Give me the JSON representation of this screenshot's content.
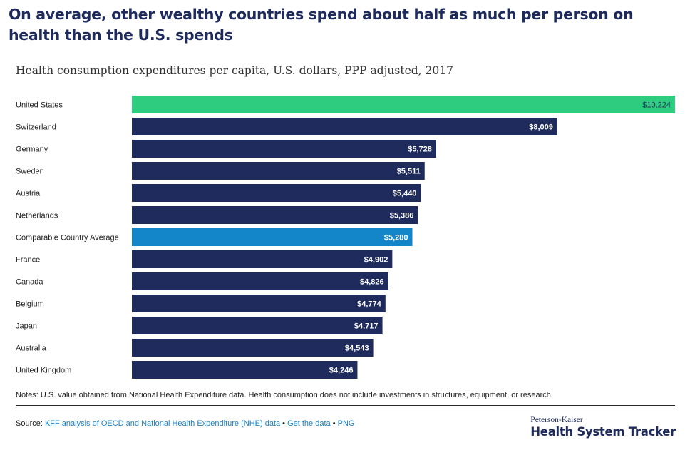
{
  "title": "On average, other wealthy countries spend about half as much per person on health than the U.S. spends",
  "subtitle": "Health consumption expenditures per capita, U.S. dollars, PPP adjusted, 2017",
  "chart_data": {
    "type": "bar",
    "orientation": "horizontal",
    "title": "On average, other wealthy countries spend about half as much per person on health than the U.S. spends",
    "subtitle": "Health consumption expenditures per capita, U.S. dollars, PPP adjusted, 2017",
    "categories": [
      "United States",
      "Switzerland",
      "Germany",
      "Sweden",
      "Austria",
      "Netherlands",
      "Comparable Country Average",
      "France",
      "Canada",
      "Belgium",
      "Japan",
      "Australia",
      "United Kingdom"
    ],
    "values": [
      10224,
      8009,
      5728,
      5511,
      5440,
      5386,
      5280,
      4902,
      4826,
      4774,
      4717,
      4543,
      4246
    ],
    "value_labels": [
      "$10,224",
      "$8,009",
      "$5,728",
      "$5,511",
      "$5,440",
      "$5,386",
      "$5,280",
      "$4,902",
      "$4,826",
      "$4,774",
      "$4,717",
      "$4,543",
      "$4,246"
    ],
    "xlim": [
      0,
      10224
    ],
    "grid": false,
    "legend": "none",
    "colors": {
      "default": "#1e2b5c",
      "United States": "#2ecc7f",
      "Comparable Country Average": "#1386c9"
    },
    "label_colors": {
      "default": "#ffffff",
      "United States": "#1e2b5c"
    }
  },
  "notes": "Notes: U.S. value obtained from National Health Expenditure data. Health consumption does not include investments in structures, equipment, or research.",
  "source": {
    "prefix": "Source: ",
    "link1": "KFF analysis of OECD and National Health Expenditure (NHE) data",
    "sep1": " • ",
    "link2": "Get the data",
    "sep2": " • ",
    "link3": "PNG"
  },
  "logo": {
    "top": "Peterson-Kaiser",
    "main": "Health System Tracker"
  }
}
